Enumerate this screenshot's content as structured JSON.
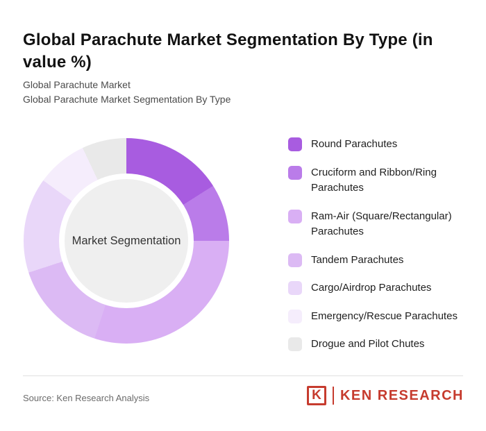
{
  "page": {
    "title": "Global Parachute Market Segmentation By Type (in value %)",
    "subtitle1": "Global Parachute Market",
    "subtitle2": "Global Parachute Market Segmentation By Type",
    "source": "Source: Ken Research Analysis",
    "logo": {
      "k_glyph": "K",
      "brand": "KEN RESEARCH",
      "brand_color": "#c63b2e"
    }
  },
  "chart_data": {
    "type": "pie",
    "donut": true,
    "title": "Global Parachute Market Segmentation By Type (in value %)",
    "center_label": "Market Segmentation",
    "legend_position": "right",
    "start_angle_deg": 0,
    "center_fill": "#efefef",
    "segments": [
      {
        "label": "Round Parachutes",
        "value": 16,
        "color": "#a85ce0"
      },
      {
        "label": "Cruciform and Ribbon/Ring Parachutes",
        "value": 9,
        "color": "#ba7ce9"
      },
      {
        "label": "Ram-Air (Square/Rectangular) Parachutes",
        "value": 30,
        "color": "#d9aff4"
      },
      {
        "label": "Tandem Parachutes",
        "value": 15,
        "color": "#dcbaf4"
      },
      {
        "label": "Cargo/Airdrop Parachutes",
        "value": 15,
        "color": "#e9d7f9"
      },
      {
        "label": "Emergency/Rescue Parachutes",
        "value": 8,
        "color": "#f5edfc"
      },
      {
        "label": "Drogue and Pilot Chutes",
        "value": 7,
        "color": "#e9e9e9"
      }
    ]
  }
}
